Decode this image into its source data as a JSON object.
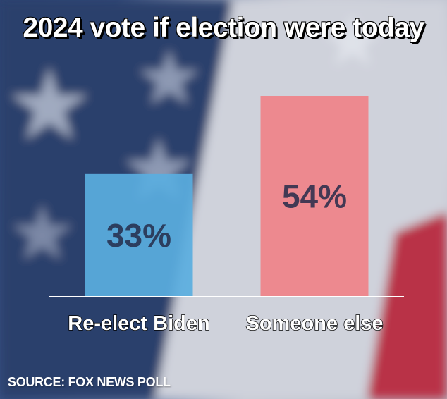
{
  "title": "2024 vote if election were today",
  "source": "SOURCE: FOX NEWS POLL",
  "chart_data": {
    "type": "bar",
    "title": "2024 vote if election were today",
    "categories": [
      "Re-elect Biden",
      "Someone else"
    ],
    "values": [
      33,
      54
    ],
    "value_labels": [
      "33%",
      "54%"
    ],
    "ylim": [
      0,
      60
    ],
    "grid": false,
    "colors": [
      "#5aaee0",
      "#f08289"
    ],
    "label_color": "#242b4a"
  }
}
